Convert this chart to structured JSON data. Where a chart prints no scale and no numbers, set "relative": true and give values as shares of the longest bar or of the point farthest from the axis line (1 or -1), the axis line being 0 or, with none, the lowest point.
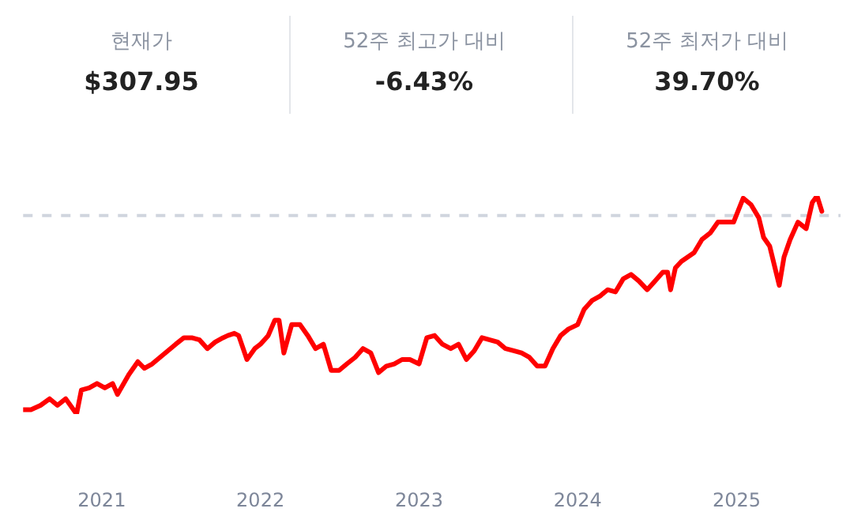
{
  "chart_data": {
    "type": "line",
    "relative": true,
    "annotations": [
      "현재가",
      "$307.95",
      "52주 최고가 대비",
      "-6.43%",
      "52주 최저가 대비",
      "39.70%"
    ],
    "x": [
      "2020-07-04",
      "2020-07-22",
      "2020-08-13",
      "2020-09-03",
      "2020-09-21",
      "2020-10-10",
      "2020-11-04",
      "2020-11-15",
      "2020-12-03",
      "2020-12-21",
      "2021-01-08",
      "2021-01-26",
      "2021-02-06",
      "2021-03-04",
      "2021-03-25",
      "2021-04-09",
      "2021-04-27",
      "2021-05-15",
      "2021-06-02",
      "2021-06-20",
      "2021-07-09",
      "2021-07-27",
      "2021-08-14",
      "2021-09-01",
      "2021-09-19",
      "2021-10-07",
      "2021-10-18",
      "2021-11-02",
      "2021-11-12",
      "2021-12-01",
      "2021-12-19",
      "2022-01-01",
      "2022-01-19",
      "2022-02-03",
      "2022-02-13",
      "2022-02-24",
      "2022-03-14",
      "2022-04-02",
      "2022-04-20",
      "2022-05-08",
      "2022-05-26",
      "2022-06-13",
      "2022-07-01",
      "2022-07-19",
      "2022-08-07",
      "2022-08-25",
      "2022-09-12",
      "2022-09-30",
      "2022-10-18",
      "2022-11-05",
      "2022-11-23",
      "2022-12-11",
      "2023-01-01",
      "2023-01-19",
      "2023-02-06",
      "2023-02-24",
      "2023-03-15",
      "2023-04-02",
      "2023-04-20",
      "2023-05-08",
      "2023-05-26",
      "2023-06-13",
      "2023-07-01",
      "2023-07-19",
      "2023-08-07",
      "2023-08-25",
      "2023-09-12",
      "2023-09-30",
      "2023-10-18",
      "2023-11-05",
      "2023-11-23",
      "2023-12-11",
      "2024-01-01",
      "2024-01-16",
      "2024-02-03",
      "2024-02-21",
      "2024-03-10",
      "2024-03-28",
      "2024-04-15",
      "2024-05-03",
      "2024-05-21",
      "2024-06-09",
      "2024-06-27",
      "2024-07-15",
      "2024-07-26",
      "2024-08-02",
      "2024-08-13",
      "2024-08-27",
      "2024-09-25",
      "2024-10-13",
      "2024-11-01",
      "2024-11-19",
      "2024-12-07",
      "2024-12-25",
      "2025-01-16",
      "2025-02-03",
      "2025-02-21",
      "2025-03-04",
      "2025-03-18",
      "2025-03-29",
      "2025-04-09",
      "2025-04-20",
      "2025-05-04",
      "2025-05-22",
      "2025-06-10",
      "2025-06-24",
      "2025-07-05",
      "2025-07-16"
    ],
    "series": [
      {
        "color": "#ff0000",
        "values": [
          0.02,
          0.02,
          0.04,
          0.07,
          0.04,
          0.07,
          0,
          0.11,
          0.12,
          0.14,
          0.12,
          0.14,
          0.09,
          0.18,
          0.24,
          0.21,
          0.23,
          0.26,
          0.29,
          0.32,
          0.35,
          0.35,
          0.34,
          0.3,
          0.33,
          0.35,
          0.36,
          0.37,
          0.36,
          0.25,
          0.3,
          0.32,
          0.36,
          0.43,
          0.43,
          0.28,
          0.41,
          0.41,
          0.36,
          0.3,
          0.32,
          0.2,
          0.2,
          0.23,
          0.26,
          0.3,
          0.28,
          0.19,
          0.22,
          0.23,
          0.25,
          0.25,
          0.23,
          0.35,
          0.36,
          0.32,
          0.3,
          0.32,
          0.25,
          0.29,
          0.35,
          0.34,
          0.33,
          0.3,
          0.29,
          0.28,
          0.26,
          0.22,
          0.22,
          0.3,
          0.36,
          0.39,
          0.41,
          0.48,
          0.52,
          0.54,
          0.57,
          0.56,
          0.62,
          0.64,
          0.61,
          0.57,
          0.61,
          0.65,
          0.65,
          0.57,
          0.67,
          0.7,
          0.74,
          0.8,
          0.83,
          0.88,
          0.88,
          0.88,
          0.99,
          0.96,
          0.9,
          0.81,
          0.77,
          0.68,
          0.59,
          0.72,
          0.8,
          0.88,
          0.85,
          0.97,
          1,
          0.93
        ]
      }
    ],
    "xlim": [
      "2020-07-04",
      "2025-08-28"
    ],
    "xticks": [
      {
        "value": "2021-01-01",
        "label": "2021"
      },
      {
        "value": "2022-01-01",
        "label": "2022"
      },
      {
        "value": "2023-01-01",
        "label": "2023"
      },
      {
        "value": "2024-01-01",
        "label": "2024"
      },
      {
        "value": "2025-01-01",
        "label": "2025"
      }
    ],
    "ref_lines": [
      {
        "axis": "y",
        "value": 0.91,
        "color": "#d0d5de",
        "line_style": "dashed"
      }
    ],
    "grid": false,
    "legend": false,
    "marker": "none",
    "line_style": "solid"
  }
}
